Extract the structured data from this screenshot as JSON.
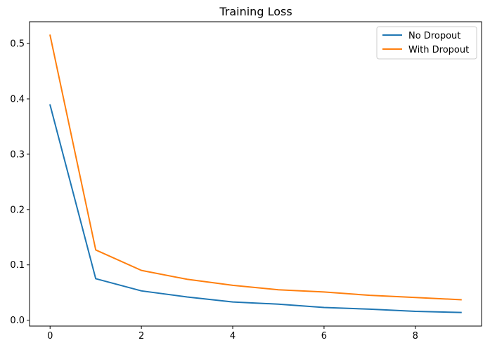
{
  "chart_data": {
    "type": "line",
    "title": "Training Loss",
    "xlabel": "",
    "ylabel": "",
    "x": [
      0,
      1,
      2,
      3,
      4,
      5,
      6,
      7,
      8,
      9
    ],
    "series": [
      {
        "name": "No Dropout",
        "color": "#1f77b4",
        "values": [
          0.389,
          0.075,
          0.053,
          0.042,
          0.033,
          0.029,
          0.023,
          0.02,
          0.016,
          0.014
        ]
      },
      {
        "name": "With Dropout",
        "color": "#ff7f0e",
        "values": [
          0.515,
          0.127,
          0.09,
          0.074,
          0.063,
          0.055,
          0.051,
          0.045,
          0.041,
          0.037
        ]
      }
    ],
    "xlim": [
      -0.45,
      9.45
    ],
    "ylim": [
      -0.0106,
      0.5394
    ],
    "xticks": [
      0,
      2,
      4,
      6,
      8
    ],
    "xtick_labels": [
      "0",
      "2",
      "4",
      "6",
      "8"
    ],
    "yticks": [
      0.0,
      0.1,
      0.2,
      0.3,
      0.4,
      0.5
    ],
    "ytick_labels": [
      "0.0",
      "0.1",
      "0.2",
      "0.3",
      "0.4",
      "0.5"
    ],
    "grid": false,
    "legend_position": "top-right"
  }
}
